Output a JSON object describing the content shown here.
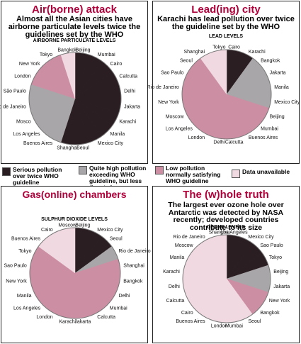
{
  "colors": {
    "serious": "#2a1e22",
    "quite_high": "#a8a6a8",
    "low": "#cc8ea3",
    "unavailable": "#f1d9e1",
    "title": "#b0003a"
  },
  "legend": [
    {
      "key": "serious",
      "text": "Serious pollution over twice WHO guideline"
    },
    {
      "key": "quite_high",
      "text": "Quite high pollution exceeding WHO guideline, but less than twice"
    },
    {
      "key": "low",
      "text": "Low pollution normally satisfying WHO guideline"
    },
    {
      "key": "unavailable",
      "text": "Data unavailable"
    }
  ],
  "chart_data": [
    {
      "type": "pie",
      "title": "Air(borne) attack",
      "subtitle": "Almost all the Asian cities have airborne particulate levels twice the guidelines set by the WHO",
      "chart_label": "AIRBORNE PARTICULATE LEVELS",
      "slices": [
        {
          "label": "Beijing",
          "category": "serious"
        },
        {
          "label": "Mumbai",
          "category": "serious"
        },
        {
          "label": "Cairo",
          "category": "serious"
        },
        {
          "label": "Calcutta",
          "category": "serious"
        },
        {
          "label": "Delhi",
          "category": "serious"
        },
        {
          "label": "Jakarta",
          "category": "serious"
        },
        {
          "label": "Karachi",
          "category": "serious"
        },
        {
          "label": "Manila",
          "category": "serious"
        },
        {
          "label": "Mexico City",
          "category": "serious"
        },
        {
          "label": "Seoul",
          "category": "serious"
        },
        {
          "label": "Shanghai",
          "category": "serious"
        },
        {
          "label": "Buenos Aires",
          "category": "quite_high"
        },
        {
          "label": "Los Angeles",
          "category": "quite_high"
        },
        {
          "label": "Mosco",
          "category": "quite_high"
        },
        {
          "label": "Rio de Janeiro",
          "category": "quite_high"
        },
        {
          "label": "São Paulo",
          "category": "quite_high"
        },
        {
          "label": "London",
          "category": "low"
        },
        {
          "label": "New York",
          "category": "low"
        },
        {
          "label": "Tokyo",
          "category": "low"
        },
        {
          "label": "Bangkok",
          "category": "unavailable"
        }
      ]
    },
    {
      "type": "pie",
      "title": "Lead(ing) city",
      "subtitle": "Karachi has lead pollution over twice the guideline set by the WHO",
      "chart_label": "LEAD LEVELS",
      "slices": [
        {
          "label": "Cairo",
          "category": "serious"
        },
        {
          "label": "Karachi",
          "category": "serious"
        },
        {
          "label": "Bangkok",
          "category": "quite_high"
        },
        {
          "label": "Jakarta",
          "category": "quite_high"
        },
        {
          "label": "Manila",
          "category": "quite_high"
        },
        {
          "label": "Mexico City",
          "category": "quite_high"
        },
        {
          "label": "Beijing",
          "category": "low"
        },
        {
          "label": "Mumbai",
          "category": "low"
        },
        {
          "label": "Buenos Aires",
          "category": "low"
        },
        {
          "label": "Calcutta",
          "category": "low"
        },
        {
          "label": "Delhi",
          "category": "low"
        },
        {
          "label": "London",
          "category": "low"
        },
        {
          "label": "Los Angeles",
          "category": "low"
        },
        {
          "label": "Moscow",
          "category": "low"
        },
        {
          "label": "New York",
          "category": "low"
        },
        {
          "label": "Rio de Janeiro",
          "category": "low"
        },
        {
          "label": "Sao Paulo",
          "category": "low"
        },
        {
          "label": "Seoul",
          "category": "low"
        },
        {
          "label": "Shanghai",
          "category": "unavailable"
        },
        {
          "label": "Tokyo",
          "category": "unavailable"
        }
      ]
    },
    {
      "type": "pie",
      "title": "Gas(online) chambers",
      "subtitle": "",
      "chart_label": "SULPHUR DIOXIDE LEVELS",
      "slices": [
        {
          "label": "Beijing",
          "category": "serious"
        },
        {
          "label": "Mexico City",
          "category": "serious"
        },
        {
          "label": "Seoul",
          "category": "serious"
        },
        {
          "label": "Rio de Janeiro",
          "category": "quite_high"
        },
        {
          "label": "Shanghai",
          "category": "low"
        },
        {
          "label": "Bangkok",
          "category": "low"
        },
        {
          "label": "Delhi",
          "category": "low"
        },
        {
          "label": "Mumbai",
          "category": "low"
        },
        {
          "label": "Calcutta",
          "category": "low"
        },
        {
          "label": "Jakarta",
          "category": "low"
        },
        {
          "label": "Karachi",
          "category": "low"
        },
        {
          "label": "London",
          "category": "low"
        },
        {
          "label": "Los Angeles",
          "category": "low"
        },
        {
          "label": "Manila",
          "category": "low"
        },
        {
          "label": "New York",
          "category": "low"
        },
        {
          "label": "Sao Paulo",
          "category": "low"
        },
        {
          "label": "Tokyo",
          "category": "low"
        },
        {
          "label": "Buenos Aires",
          "category": "unavailable"
        },
        {
          "label": "Cairo",
          "category": "unavailable"
        },
        {
          "label": "Moscow",
          "category": "unavailable"
        }
      ]
    },
    {
      "type": "pie",
      "title": "The (w)hole truth",
      "subtitle": "The largest ever ozone hole over Antarctic was detected by NASA recently; developed countries contribute to its size",
      "chart_label": "OZONE LEVELS",
      "slices": [
        {
          "label": "Los Angeles",
          "category": "serious"
        },
        {
          "label": "Mexico City",
          "category": "serious"
        },
        {
          "label": "Sao Paulo",
          "category": "serious"
        },
        {
          "label": "Tokyo",
          "category": "serious"
        },
        {
          "label": "Beijing",
          "category": "quite_high"
        },
        {
          "label": "Jakarta",
          "category": "quite_high"
        },
        {
          "label": "New York",
          "category": "low"
        },
        {
          "label": "Bangkok",
          "category": "low"
        },
        {
          "label": "Seoul",
          "category": "unavailable"
        },
        {
          "label": "Mumbai",
          "category": "unavailable"
        },
        {
          "label": "London",
          "category": "unavailable"
        },
        {
          "label": "Buenos Aires",
          "category": "unavailable"
        },
        {
          "label": "Cairo",
          "category": "unavailable"
        },
        {
          "label": "Calcutta",
          "category": "unavailable"
        },
        {
          "label": "Delhi",
          "category": "unavailable"
        },
        {
          "label": "Karachi",
          "category": "unavailable"
        },
        {
          "label": "Manila",
          "category": "unavailable"
        },
        {
          "label": "Moscow",
          "category": "unavailable"
        },
        {
          "label": "Rio de Janeiro",
          "category": "unavailable"
        },
        {
          "label": "Shanghai",
          "category": "unavailable"
        }
      ]
    }
  ]
}
